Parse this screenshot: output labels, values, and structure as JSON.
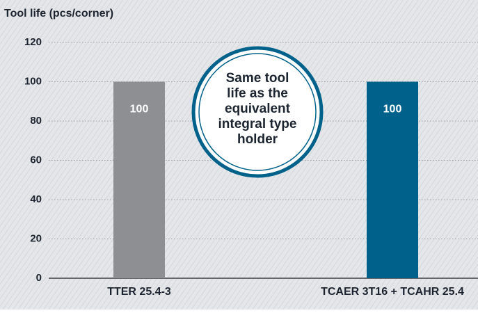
{
  "chart_data": {
    "type": "bar",
    "y_axis_label": "Tool life (pcs/corner)",
    "categories": [
      "TTER 25.4-3",
      "TCAER 3T16 + TCAHR 25.4"
    ],
    "values": [
      100,
      100
    ],
    "colors": [
      "#8e8f92",
      "#00628a"
    ],
    "ylim": [
      0,
      120
    ],
    "yticks": [
      0,
      20,
      40,
      60,
      80,
      100,
      120
    ],
    "grid": true,
    "annotation": [
      "Same tool",
      "life as the",
      "equivalent",
      "integral type",
      "holder"
    ]
  }
}
